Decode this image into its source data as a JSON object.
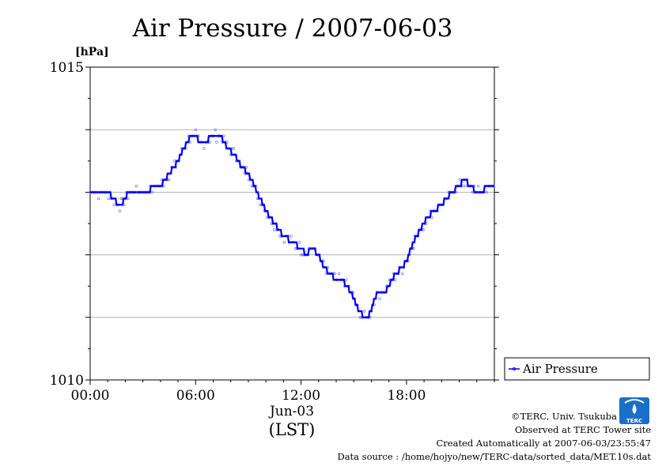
{
  "chart_data": {
    "type": "line",
    "title": "Air Pressure / 2007-06-03",
    "ylabel": "[hPa]",
    "xlabel": "(LST)",
    "date_label": "Jun-03",
    "ylim": [
      1010,
      1015
    ],
    "xlim": [
      0,
      23
    ],
    "y_tick_labels": [
      "1015",
      "1010"
    ],
    "y_gridlines": [
      1011,
      1012,
      1013,
      1014
    ],
    "x_ticks": [
      0,
      6,
      12,
      18
    ],
    "x_tick_labels": [
      "00:00",
      "06:00",
      "12:00",
      "18:00"
    ],
    "grid": true,
    "legend_position": "right",
    "series": [
      {
        "name": "Air Pressure",
        "color": "#0000ff",
        "x": [
          0.0,
          0.5,
          1.0,
          1.3,
          1.6,
          1.8,
          2.0,
          2.2,
          2.5,
          3.0,
          3.3,
          3.6,
          4.0,
          4.5,
          5.0,
          5.5,
          5.8,
          6.0,
          6.2,
          6.5,
          7.0,
          7.4,
          7.8,
          8.2,
          8.6,
          9.0,
          9.5,
          10.0,
          10.5,
          11.0,
          11.5,
          12.0,
          12.3,
          12.6,
          13.0,
          13.3,
          13.6,
          14.0,
          14.3,
          14.6,
          15.0,
          15.3,
          15.6,
          15.8,
          16.0,
          16.2,
          16.4,
          16.8,
          17.0,
          17.4,
          17.8,
          18.0,
          18.4,
          18.8,
          19.2,
          19.6,
          20.0,
          20.3,
          20.6,
          21.0,
          21.3,
          21.6,
          22.0,
          22.3,
          22.6,
          23.0
        ],
        "values": [
          1013.0,
          1013.0,
          1013.0,
          1012.9,
          1012.8,
          1012.8,
          1012.9,
          1013.0,
          1013.0,
          1013.0,
          1013.0,
          1013.1,
          1013.1,
          1013.3,
          1013.5,
          1013.8,
          1013.9,
          1013.9,
          1013.8,
          1013.8,
          1013.9,
          1013.9,
          1013.7,
          1013.6,
          1013.4,
          1013.3,
          1013.0,
          1012.7,
          1012.5,
          1012.3,
          1012.2,
          1012.1,
          1012.0,
          1012.1,
          1012.0,
          1011.8,
          1011.7,
          1011.6,
          1011.6,
          1011.5,
          1011.3,
          1011.1,
          1011.0,
          1011.0,
          1011.1,
          1011.3,
          1011.4,
          1011.4,
          1011.5,
          1011.7,
          1011.8,
          1011.9,
          1012.2,
          1012.4,
          1012.6,
          1012.7,
          1012.8,
          1012.9,
          1013.0,
          1013.1,
          1013.2,
          1013.1,
          1013.0,
          1013.0,
          1013.1,
          1013.1
        ]
      }
    ]
  },
  "credits": {
    "copyright": "©TERC, Univ. Tsukuba",
    "observed": "Observed at TERC Tower site",
    "created": "Created Automatically at 2007-06-03/23:55:47",
    "source": "Data source : /home/hojyo/new/TERC-data/sorted_data/MET.10s.dat",
    "logo_text": "TERC",
    "logo_color": "#1a6fc9"
  }
}
